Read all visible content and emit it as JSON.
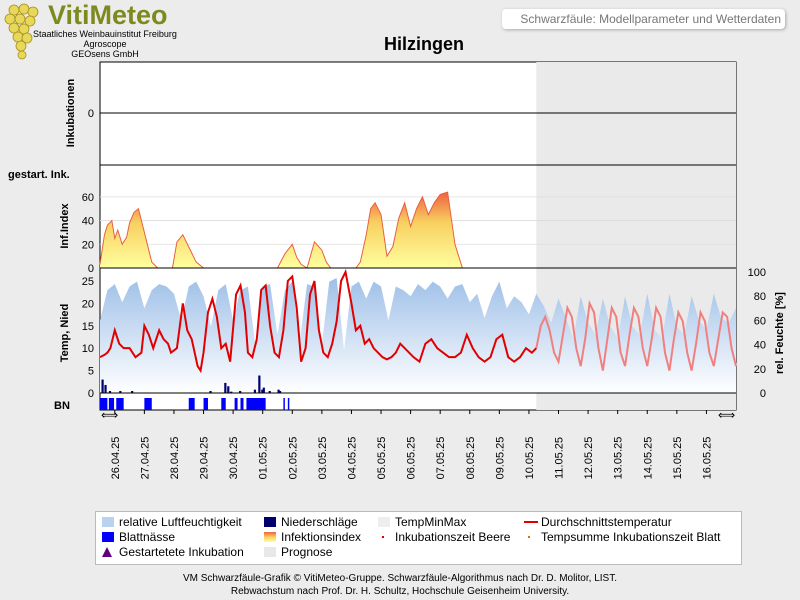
{
  "header": {
    "brand": "VitiMeteo",
    "brand_lines": [
      "Staatliches Weinbauinstitut Freiburg",
      "Agroscope",
      "GEOsens GmbH"
    ],
    "subtitle": "Schwarzfäule: Modellparameter und Wetterdaten",
    "title": "Hilzingen"
  },
  "chart_data": [
    {
      "type": "line",
      "panel": "incubations",
      "ylabel": "Inkubationen",
      "yticks": [
        0
      ],
      "side_label": "gestart. Ink.",
      "values": [
        0
      ]
    },
    {
      "type": "area",
      "panel": "infection-index",
      "ylabel": "Inf.Index",
      "ylim": [
        0,
        70
      ],
      "yticks": [
        0,
        20,
        40,
        60
      ],
      "series": [
        {
          "name": "Infektionsindex",
          "x": [
            0,
            0.3,
            0.5,
            0.8,
            1.0,
            1.2,
            1.5,
            1.8,
            2.0,
            2.3,
            2.6,
            3.0,
            3.5,
            3.9,
            4.2,
            4.5,
            4.9,
            5.2,
            5.6,
            6.5,
            7.0,
            7.3,
            7.7,
            8.0,
            8.5,
            9.0,
            9.5,
            10.0,
            10.4,
            10.8,
            11.2,
            11.5,
            12.0,
            12.5,
            13.0,
            13.3,
            13.6,
            14.0,
            14.5,
            15.0,
            15.3,
            15.6,
            16.0,
            16.5,
            17.0,
            17.3,
            17.6,
            18.0,
            18.3,
            18.6,
            19.0,
            19.4,
            19.8,
            20.2,
            20.6,
            21.0,
            21.4,
            21.8,
            22.2,
            22.6,
            23.0,
            23.5,
            24.0,
            24.5,
            25.0,
            26.0,
            27.0,
            27.5,
            28.0,
            28.5,
            29.0,
            30.0
          ],
          "values": [
            3,
            28,
            36,
            40,
            25,
            32,
            20,
            26,
            38,
            47,
            50,
            30,
            5,
            0,
            0,
            0,
            0,
            22,
            28,
            5,
            0,
            0,
            0,
            0,
            0,
            0,
            0,
            0,
            0,
            0,
            0,
            0,
            0,
            12,
            20,
            9,
            3,
            0,
            22,
            15,
            5,
            0,
            0,
            0,
            0,
            0,
            5,
            28,
            50,
            55,
            45,
            10,
            18,
            42,
            55,
            35,
            50,
            60,
            45,
            55,
            62,
            64,
            20,
            0,
            0,
            0,
            0,
            0,
            0,
            0,
            0,
            0
          ]
        }
      ]
    },
    {
      "type": "line",
      "panel": "weather",
      "ylabel": "Temp, Nied",
      "y2label": "rel. Feuchte [%]",
      "ylim": [
        0,
        27
      ],
      "y2lim": [
        0,
        100
      ],
      "yticks": [
        0,
        5,
        10,
        15,
        20,
        25
      ],
      "y2ticks": [
        0,
        20,
        40,
        60,
        80,
        100
      ],
      "x_tick_labels": [
        "26.04.25",
        "27.04.25",
        "28.04.25",
        "29.04.25",
        "30.04.25",
        "01.05.25",
        "02.05.25",
        "03.05.25",
        "04.05.25",
        "05.05.25",
        "06.05.25",
        "07.05.25",
        "08.05.25",
        "09.05.25",
        "10.05.25",
        "11.05.25",
        "12.05.25",
        "13.05.25",
        "14.05.25",
        "15.05.25",
        "16.05.25"
      ],
      "forecast_start": "09.05.25 12:00",
      "series": [
        {
          "name": "Durchschnittstemperatur",
          "color": "#e00000",
          "x": [
            0,
            0.3,
            0.5,
            0.7,
            1,
            1.3,
            1.6,
            2.0,
            2.4,
            2.8,
            3.0,
            3.3,
            3.6,
            3.8,
            4.0,
            4.3,
            4.6,
            4.8,
            5.2,
            5.6,
            5.9,
            6.2,
            6.6,
            6.8,
            7.0,
            7.3,
            7.6,
            7.9,
            8.2,
            8.5,
            8.8,
            9.2,
            9.5,
            9.8,
            10.0,
            10.3,
            10.6,
            10.9,
            11.2,
            11.5,
            11.8,
            12.1,
            12.4,
            12.7,
            13.0,
            13.3,
            13.6,
            13.9,
            14.2,
            14.5,
            14.8,
            15.1,
            15.4,
            15.7,
            16.0,
            16.3,
            16.6,
            17.0,
            17.3,
            17.6,
            17.9,
            18.2,
            18.5,
            18.8,
            19.1,
            19.4,
            19.7,
            20.0,
            20.3,
            20.6,
            20.9,
            21.2,
            21.6,
            22.0,
            22.4,
            22.8,
            23.2,
            23.6,
            24.0,
            24.4,
            24.8,
            25.2,
            25.6,
            26.0,
            26.4,
            26.8,
            27.2,
            27.6,
            28.0,
            28.4,
            28.8,
            29.2,
            29.5
          ],
          "values": [
            8,
            8.5,
            9,
            10,
            14,
            11,
            10,
            10,
            8,
            9,
            15,
            13,
            10,
            12,
            14,
            12,
            11,
            9,
            10,
            20,
            14,
            12,
            6,
            5,
            9,
            18,
            21,
            17,
            10,
            11,
            7,
            22,
            24,
            18,
            9,
            8,
            12,
            23,
            24,
            15,
            9,
            8,
            14,
            25,
            26,
            19,
            7,
            10,
            22,
            25,
            14,
            9,
            8,
            11,
            16,
            25,
            27,
            20,
            14,
            15,
            11,
            12,
            10,
            9,
            8,
            7.5,
            8,
            9,
            11,
            10,
            9,
            8,
            7,
            11,
            12,
            10,
            9,
            8,
            8,
            9,
            13,
            10,
            8,
            7,
            8,
            12,
            13,
            8,
            7,
            8,
            10,
            9,
            10
          ]
        },
        {
          "name": "TempMinMax",
          "color": "#f08080",
          "x": [
            29.5,
            29.8,
            30.1,
            30.4,
            30.7,
            31.0,
            31.3,
            31.6,
            31.9,
            32.2,
            32.5,
            32.8,
            33.1,
            33.4,
            33.7,
            34.0,
            34.3,
            34.6,
            34.9,
            35.2,
            35.5,
            35.8,
            36.1,
            36.4,
            36.7,
            37.0,
            37.3,
            37.6,
            37.9,
            38.2,
            38.5,
            38.8,
            39.1,
            39.4,
            39.7,
            40.0,
            40.3,
            40.6,
            40.9,
            41.2,
            41.5,
            41.8,
            42.1,
            42.4,
            42.7,
            43.0
          ],
          "values": [
            10,
            15,
            17,
            14,
            9,
            7,
            13,
            19,
            17,
            10,
            6,
            12,
            20,
            18,
            10,
            5,
            12,
            19,
            17,
            9,
            6,
            13,
            19,
            17,
            10,
            6,
            12,
            19,
            17,
            9,
            5,
            12,
            18,
            16,
            9,
            5,
            11,
            18,
            16,
            9,
            6,
            12,
            18,
            17,
            10,
            6
          ]
        },
        {
          "name": "relative Luftfeuchtigkeit",
          "color": "#9fc0e8",
          "x": [
            0,
            0.5,
            1.0,
            1.5,
            2.0,
            2.5,
            3.0,
            3.5,
            4.0,
            4.5,
            5.0,
            5.5,
            6.0,
            6.5,
            7.0,
            7.5,
            8.0,
            8.5,
            9.0,
            9.5,
            10.0,
            10.5,
            11.0,
            11.5,
            12.0,
            12.5,
            13.0,
            13.5,
            14.0,
            14.5,
            15.0,
            15.5,
            16.0,
            16.5,
            17.0,
            17.5,
            18.0,
            18.5,
            19.0,
            19.5,
            20.0,
            20.5,
            21.0,
            21.5,
            22.0,
            22.5,
            23.0,
            23.5,
            24.0,
            24.5,
            25.0,
            25.5,
            26.0,
            26.5,
            27.0,
            27.5,
            28.0,
            28.5,
            29.0,
            29.5,
            30.0,
            30.5,
            31.0,
            31.5,
            32.0,
            32.5,
            33.0,
            33.5,
            34.0,
            34.5,
            35.0,
            35.5,
            36.0,
            36.5,
            37.0,
            37.5,
            38.0,
            38.5,
            39.0,
            39.5,
            40.0,
            40.5,
            41.0,
            41.5,
            42.0,
            42.5,
            43.0
          ],
          "values": [
            60,
            85,
            90,
            75,
            88,
            92,
            70,
            85,
            90,
            88,
            82,
            60,
            88,
            92,
            80,
            55,
            85,
            90,
            60,
            85,
            88,
            40,
            88,
            90,
            48,
            85,
            92,
            42,
            90,
            88,
            40,
            92,
            95,
            35,
            88,
            92,
            78,
            92,
            88,
            60,
            88,
            85,
            80,
            90,
            85,
            92,
            88,
            78,
            88,
            90,
            75,
            82,
            62,
            80,
            92,
            70,
            80,
            75,
            65,
            82,
            72,
            58,
            78,
            62,
            45,
            80,
            58,
            48,
            78,
            55,
            45,
            80,
            55,
            48,
            82,
            52,
            45,
            82,
            55,
            48,
            80,
            60,
            52,
            82,
            62,
            58,
            70
          ]
        },
        {
          "name": "Niederschläge",
          "color": "#00006e",
          "x": [
            0.1,
            0.3,
            0.6,
            1.3,
            2.1,
            7.4,
            8.4,
            8.6,
            8.8,
            9.4,
            10.4,
            10.7,
            10.9,
            11.0,
            11.4,
            12.0,
            12.1
          ],
          "values": [
            2.0,
            1.2,
            0.3,
            0.3,
            0.3,
            0.3,
            1.5,
            1.0,
            0.2,
            0.3,
            0.5,
            2.6,
            0.5,
            0.8,
            0.3,
            0.5,
            0.3
          ]
        }
      ]
    },
    {
      "type": "bar",
      "panel": "leaf-wetness",
      "ylabel": "BN",
      "series": [
        {
          "name": "Blattnässe",
          "color": "#0000ff",
          "intervals": [
            [
              0.0,
              0.5
            ],
            [
              0.6,
              0.95
            ],
            [
              1.1,
              1.6
            ],
            [
              3.0,
              3.5
            ],
            [
              6.0,
              6.4
            ],
            [
              7.0,
              7.3
            ],
            [
              8.2,
              8.5
            ],
            [
              9.1,
              9.3
            ],
            [
              9.5,
              9.7
            ],
            [
              9.9,
              11.2
            ],
            [
              12.4,
              12.5
            ],
            [
              12.7,
              12.8
            ]
          ]
        }
      ]
    }
  ],
  "legend": [
    {
      "label": "relative Luftfeuchtigkeit",
      "kind": "swatch",
      "color": "#b8d2f0"
    },
    {
      "label": "Niederschläge",
      "kind": "swatch",
      "color": "#00006e"
    },
    {
      "label": "TempMinMax",
      "kind": "swatch",
      "color": "#eeeeee"
    },
    {
      "label": "Durchschnittstemperatur",
      "kind": "line",
      "color": "#e00000"
    },
    {
      "label": "Blattnässe",
      "kind": "swatch",
      "color": "#0000ff"
    },
    {
      "label": "Infektionsindex",
      "kind": "gradient",
      "color": "#f0a040"
    },
    {
      "label": "Inkubationszeit Beere",
      "kind": "dot",
      "color": "#e00000"
    },
    {
      "label": "Tempsumme Inkubationszeit Blatt",
      "kind": "dot",
      "color": "#e07000"
    },
    {
      "label": "Gestartetete Inkubation",
      "kind": "triangle",
      "color": "#600080"
    },
    {
      "label": "Prognose",
      "kind": "swatch",
      "color": "#e8e8e8"
    }
  ],
  "footer": {
    "line1": "VM Schwarzfäule-Grafik © VitiMeteo-Gruppe. Schwarzfäule-Algorithmus nach Dr. D. Molitor, LIST.",
    "line2": "Rebwachstum nach Prof. Dr. H. Schultz, Hochschule Geisenheim University."
  }
}
